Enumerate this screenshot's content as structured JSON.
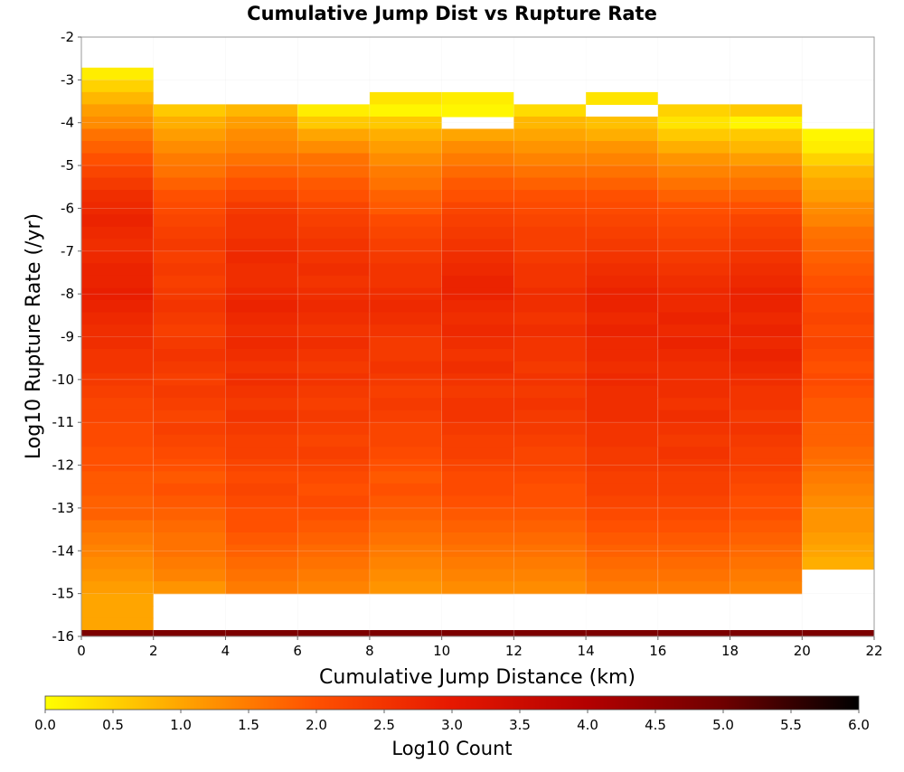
{
  "chart_data": {
    "type": "heatmap",
    "title": "Cumulative Jump Dist vs Rupture Rate",
    "xlabel": "Cumulative Jump Distance (km)",
    "ylabel": "Log10 Rupture Rate (/yr)",
    "xlim": [
      0,
      22
    ],
    "ylim": [
      -16,
      -2
    ],
    "x_bin_width_km": 2,
    "y_bin_width_log10": 0.2857,
    "x_ticks": [
      "0",
      "2",
      "4",
      "6",
      "8",
      "10",
      "12",
      "14",
      "16",
      "18",
      "20",
      "22"
    ],
    "y_ticks": [
      "-2",
      "-3",
      "-4",
      "-5",
      "-6",
      "-7",
      "-8",
      "-9",
      "-10",
      "-11",
      "-12",
      "-13",
      "-14",
      "-15",
      "-16"
    ],
    "colorbar": {
      "label": "Log10 Count",
      "range": [
        0.0,
        6.0
      ],
      "ticks": [
        "0.0",
        "0.5",
        "1.0",
        "1.5",
        "2.0",
        "2.5",
        "3.0",
        "3.5",
        "4.0",
        "4.5",
        "5.0",
        "5.5",
        "6.0"
      ],
      "colormap": [
        "#ffff00",
        "#ffa500",
        "#ff5000",
        "#e61800",
        "#b30000",
        "#6e0000",
        "#000000"
      ]
    },
    "columns": [
      {
        "x": [
          0,
          2
        ],
        "y_top": -2.714,
        "log10_counts_top_to_bottom": [
          0.2,
          0.5,
          0.8,
          1.1,
          1.3,
          1.6,
          1.8,
          2.0,
          2.2,
          2.4,
          2.6,
          2.7,
          2.8,
          2.7,
          2.6,
          2.7,
          2.8,
          2.8,
          2.9,
          2.8,
          2.7,
          2.6,
          2.6,
          2.5,
          2.5,
          2.4,
          2.3,
          2.2,
          2.2,
          2.1,
          2.1,
          2.0,
          2.0,
          1.9,
          1.9,
          1.8,
          1.8,
          1.6,
          1.5,
          1.4,
          1.3,
          1.2,
          1.1,
          1.0,
          1.0,
          1.0
        ],
        "floor_band_log10_count": 4.8
      },
      {
        "x": [
          2,
          4
        ],
        "y_top": -3.571,
        "log10_counts_top_to_bottom": [
          0.6,
          0.9,
          1.1,
          1.3,
          1.5,
          1.6,
          1.8,
          2.0,
          2.1,
          2.2,
          2.3,
          2.4,
          2.3,
          2.4,
          2.3,
          2.4,
          2.5,
          2.4,
          2.3,
          2.4,
          2.5,
          2.4,
          2.3,
          2.4,
          2.3,
          2.2,
          2.3,
          2.2,
          2.1,
          2.0,
          1.9,
          2.0,
          1.9,
          1.8,
          1.7,
          1.6,
          1.6,
          1.5,
          1.4,
          1.2
        ],
        "floor_band_log10_count": 4.8
      },
      {
        "x": [
          4,
          6
        ],
        "y_top": -3.571,
        "log10_counts_top_to_bottom": [
          0.8,
          1.1,
          1.3,
          1.4,
          1.6,
          1.8,
          2.0,
          2.2,
          2.4,
          2.5,
          2.5,
          2.6,
          2.7,
          2.6,
          2.6,
          2.7,
          2.8,
          2.7,
          2.6,
          2.7,
          2.6,
          2.5,
          2.6,
          2.5,
          2.4,
          2.5,
          2.4,
          2.3,
          2.3,
          2.2,
          2.1,
          2.2,
          2.1,
          2.0,
          2.0,
          1.9,
          1.8,
          1.7,
          1.6,
          1.5
        ],
        "floor_band_log10_count": 4.8
      },
      {
        "x": [
          6,
          8
        ],
        "y_top": -3.571,
        "log10_counts_top_to_bottom": [
          0.2,
          0.6,
          1.0,
          1.3,
          1.6,
          1.7,
          1.9,
          2.0,
          2.2,
          2.3,
          2.4,
          2.5,
          2.5,
          2.6,
          2.5,
          2.6,
          2.7,
          2.6,
          2.5,
          2.6,
          2.5,
          2.4,
          2.5,
          2.4,
          2.3,
          2.4,
          2.3,
          2.2,
          2.3,
          2.2,
          2.1,
          2.0,
          2.1,
          2.0,
          1.9,
          1.8,
          1.7,
          1.6,
          1.5,
          1.4
        ],
        "floor_band_log10_count": 4.8
      },
      {
        "x": [
          8,
          10
        ],
        "y_top": -3.286,
        "log10_counts_top_to_bottom": [
          0.3,
          0.1,
          0.6,
          0.9,
          1.1,
          1.3,
          1.5,
          1.6,
          1.8,
          1.9,
          2.1,
          2.2,
          2.3,
          2.4,
          2.5,
          2.5,
          2.6,
          2.7,
          2.6,
          2.5,
          2.4,
          2.4,
          2.5,
          2.4,
          2.3,
          2.4,
          2.3,
          2.2,
          2.2,
          2.1,
          2.0,
          1.9,
          2.0,
          1.9,
          1.8,
          1.7,
          1.6,
          1.5,
          1.4,
          1.3,
          1.2
        ],
        "floor_band_log10_count": 4.8
      },
      {
        "x": [
          10,
          12
        ],
        "y_top": -3.286,
        "log10_counts_top_to_bottom": [
          0.2,
          0.1,
          null,
          1.0,
          1.3,
          1.5,
          1.7,
          1.9,
          2.0,
          2.2,
          2.3,
          2.4,
          2.5,
          2.6,
          2.7,
          2.8,
          2.8,
          2.7,
          2.6,
          2.7,
          2.6,
          2.5,
          2.6,
          2.5,
          2.4,
          2.5,
          2.5,
          2.4,
          2.3,
          2.3,
          2.2,
          2.1,
          2.1,
          2.0,
          1.9,
          1.8,
          1.7,
          1.6,
          1.5,
          1.4,
          1.3
        ],
        "floor_band_log10_count": 4.8
      },
      {
        "x": [
          12,
          14
        ],
        "y_top": -3.571,
        "log10_counts_top_to_bottom": [
          0.4,
          0.8,
          1.0,
          1.2,
          1.4,
          1.6,
          1.8,
          2.0,
          2.1,
          2.2,
          2.3,
          2.3,
          2.4,
          2.5,
          2.5,
          2.6,
          2.6,
          2.5,
          2.6,
          2.5,
          2.5,
          2.4,
          2.5,
          2.4,
          2.5,
          2.4,
          2.4,
          2.3,
          2.2,
          2.2,
          2.1,
          2.0,
          2.0,
          1.9,
          1.8,
          1.7,
          1.6,
          1.5,
          1.4,
          1.3
        ],
        "floor_band_log10_count": 4.8
      },
      {
        "x": [
          14,
          16
        ],
        "y_top": -3.286,
        "log10_counts_top_to_bottom": [
          0.3,
          null,
          0.7,
          0.9,
          1.2,
          1.4,
          1.6,
          1.8,
          2.0,
          2.1,
          2.2,
          2.3,
          2.4,
          2.5,
          2.6,
          2.7,
          2.8,
          2.8,
          2.7,
          2.8,
          2.7,
          2.7,
          2.6,
          2.7,
          2.6,
          2.6,
          2.6,
          2.5,
          2.5,
          2.4,
          2.4,
          2.3,
          2.3,
          2.2,
          2.1,
          2.0,
          1.9,
          1.8,
          1.7,
          1.6,
          1.5
        ],
        "floor_band_log10_count": 4.8
      },
      {
        "x": [
          16,
          18
        ],
        "y_top": -3.571,
        "log10_counts_top_to_bottom": [
          0.5,
          0.3,
          0.6,
          0.9,
          1.2,
          1.4,
          1.6,
          1.8,
          2.0,
          2.1,
          2.2,
          2.3,
          2.4,
          2.5,
          2.6,
          2.7,
          2.7,
          2.8,
          2.7,
          2.8,
          2.7,
          2.6,
          2.6,
          2.6,
          2.5,
          2.6,
          2.5,
          2.4,
          2.5,
          2.4,
          2.3,
          2.3,
          2.2,
          2.1,
          2.0,
          1.9,
          1.8,
          1.7,
          1.6,
          1.5
        ],
        "floor_band_log10_count": 4.8
      },
      {
        "x": [
          18,
          20
        ],
        "y_top": -3.571,
        "log10_counts_top_to_bottom": [
          0.6,
          0.1,
          0.6,
          0.8,
          1.1,
          1.4,
          1.6,
          1.8,
          2.0,
          2.2,
          2.3,
          2.4,
          2.5,
          2.6,
          2.7,
          2.8,
          2.8,
          2.7,
          2.8,
          2.7,
          2.8,
          2.7,
          2.6,
          2.5,
          2.5,
          2.4,
          2.5,
          2.4,
          2.3,
          2.3,
          2.2,
          2.1,
          2.0,
          2.0,
          1.9,
          1.8,
          1.7,
          1.6,
          1.5,
          1.4
        ],
        "floor_band_log10_count": 4.8
      },
      {
        "x": [
          20,
          22
        ],
        "y_top": -4.143,
        "log10_counts_top_to_bottom": [
          0.1,
          0.2,
          0.5,
          0.8,
          1.0,
          1.1,
          1.3,
          1.4,
          1.6,
          1.7,
          1.8,
          1.9,
          2.0,
          2.1,
          2.1,
          2.2,
          2.1,
          2.2,
          2.1,
          2.0,
          2.1,
          2.0,
          1.9,
          1.9,
          1.8,
          1.8,
          1.7,
          1.6,
          1.5,
          1.4,
          1.3,
          1.2,
          1.2,
          1.1,
          1.0,
          0.9
        ],
        "floor_band_log10_count": 4.8
      }
    ]
  }
}
